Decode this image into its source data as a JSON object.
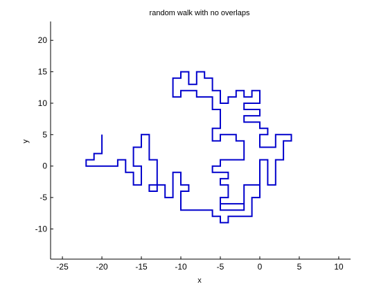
{
  "chart_data": {
    "type": "line",
    "title": "random walk with no overlaps",
    "xlabel": "x",
    "ylabel": "y",
    "xlim": [
      -26.5,
      11.5
    ],
    "ylim": [
      -14.8,
      23
    ],
    "xticks": [
      -25,
      -20,
      -15,
      -10,
      -5,
      0,
      5,
      10
    ],
    "yticks": [
      -10,
      -5,
      0,
      5,
      10,
      15,
      20
    ],
    "grid": false,
    "line_color": "#0000cc",
    "series": [
      {
        "points": [
          [
            -20,
            5
          ],
          [
            -20,
            2
          ],
          [
            -21,
            2
          ],
          [
            -21,
            1
          ],
          [
            -22,
            1
          ],
          [
            -22,
            0
          ],
          [
            -18,
            0
          ],
          [
            -18,
            1
          ],
          [
            -17,
            1
          ],
          [
            -17,
            -1
          ],
          [
            -16,
            -1
          ],
          [
            -16,
            -3
          ],
          [
            -15,
            -3
          ],
          [
            -15,
            0
          ],
          [
            -16,
            0
          ],
          [
            -16,
            3
          ],
          [
            -15,
            3
          ],
          [
            -15,
            5
          ],
          [
            -14,
            5
          ],
          [
            -14,
            1
          ],
          [
            -13,
            1
          ],
          [
            -13,
            -3
          ],
          [
            -14,
            -3
          ],
          [
            -14,
            -4
          ],
          [
            -13,
            -4
          ],
          [
            -13,
            -3
          ],
          [
            -12,
            -3
          ],
          [
            -12,
            -5
          ],
          [
            -11,
            -5
          ],
          [
            -11,
            -1
          ],
          [
            -10,
            -1
          ],
          [
            -10,
            -3
          ],
          [
            -9,
            -3
          ],
          [
            -9,
            -4
          ],
          [
            -10,
            -4
          ],
          [
            -10,
            -7
          ],
          [
            -6,
            -7
          ],
          [
            -6,
            -8
          ],
          [
            -5,
            -8
          ],
          [
            -5,
            -9
          ],
          [
            -4,
            -9
          ],
          [
            -4,
            -8
          ],
          [
            -1,
            -8
          ],
          [
            -1,
            -5
          ],
          [
            0,
            -5
          ],
          [
            0,
            -3
          ],
          [
            -2,
            -3
          ],
          [
            -2,
            -4
          ],
          [
            -2,
            -5
          ],
          [
            -2,
            -6
          ],
          [
            -5,
            -6
          ],
          [
            -5,
            -7
          ],
          [
            -2,
            -7
          ],
          [
            -2,
            -3
          ],
          [
            0,
            -3
          ],
          [
            0,
            1
          ],
          [
            1,
            1
          ],
          [
            1,
            -3
          ],
          [
            2,
            -3
          ],
          [
            2,
            1
          ],
          [
            3,
            1
          ],
          [
            3,
            4
          ],
          [
            4,
            4
          ],
          [
            4,
            5
          ],
          [
            2,
            5
          ],
          [
            2,
            3
          ],
          [
            1,
            3
          ],
          [
            0,
            3
          ],
          [
            0,
            5
          ],
          [
            1,
            5
          ],
          [
            1,
            6
          ],
          [
            0,
            6
          ],
          [
            0,
            7
          ],
          [
            -1,
            7
          ],
          [
            -2,
            7
          ],
          [
            -2,
            8
          ],
          [
            0,
            8
          ],
          [
            0,
            9
          ],
          [
            -2,
            9
          ],
          [
            -2,
            10
          ],
          [
            0,
            10
          ],
          [
            0,
            11
          ],
          [
            0,
            12
          ],
          [
            -1,
            12
          ],
          [
            -1,
            11
          ],
          [
            -2,
            11
          ],
          [
            -2,
            12
          ],
          [
            -3,
            12
          ],
          [
            -3,
            11
          ],
          [
            -4,
            11
          ],
          [
            -4,
            10
          ],
          [
            -5,
            10
          ],
          [
            -5,
            11
          ],
          [
            -5,
            12
          ],
          [
            -6,
            12
          ],
          [
            -6,
            14
          ],
          [
            -7,
            14
          ],
          [
            -7,
            15
          ],
          [
            -8,
            15
          ],
          [
            -8,
            13
          ],
          [
            -9,
            13
          ],
          [
            -9,
            14
          ],
          [
            -9,
            15
          ],
          [
            -10,
            15
          ],
          [
            -10,
            14
          ],
          [
            -11,
            14
          ],
          [
            -11,
            13
          ],
          [
            -11,
            11
          ],
          [
            -10,
            11
          ],
          [
            -10,
            12
          ],
          [
            -8,
            12
          ],
          [
            -8,
            11
          ],
          [
            -6,
            11
          ],
          [
            -6,
            10
          ],
          [
            -6,
            9
          ],
          [
            -5,
            9
          ],
          [
            -5,
            6
          ],
          [
            -6,
            6
          ],
          [
            -6,
            4
          ],
          [
            -5,
            4
          ],
          [
            -5,
            5
          ],
          [
            -3,
            5
          ],
          [
            -3,
            4
          ],
          [
            -2,
            4
          ],
          [
            -2,
            2
          ],
          [
            -2,
            1
          ],
          [
            -5,
            1
          ],
          [
            -5,
            0
          ],
          [
            -6,
            0
          ],
          [
            -6,
            -1
          ],
          [
            -4,
            -1
          ],
          [
            -4,
            -2
          ],
          [
            -5,
            -2
          ],
          [
            -5,
            -3
          ],
          [
            -4,
            -3
          ],
          [
            -4,
            -5
          ],
          [
            -5,
            -5
          ],
          [
            -5,
            -7
          ]
        ]
      }
    ]
  }
}
